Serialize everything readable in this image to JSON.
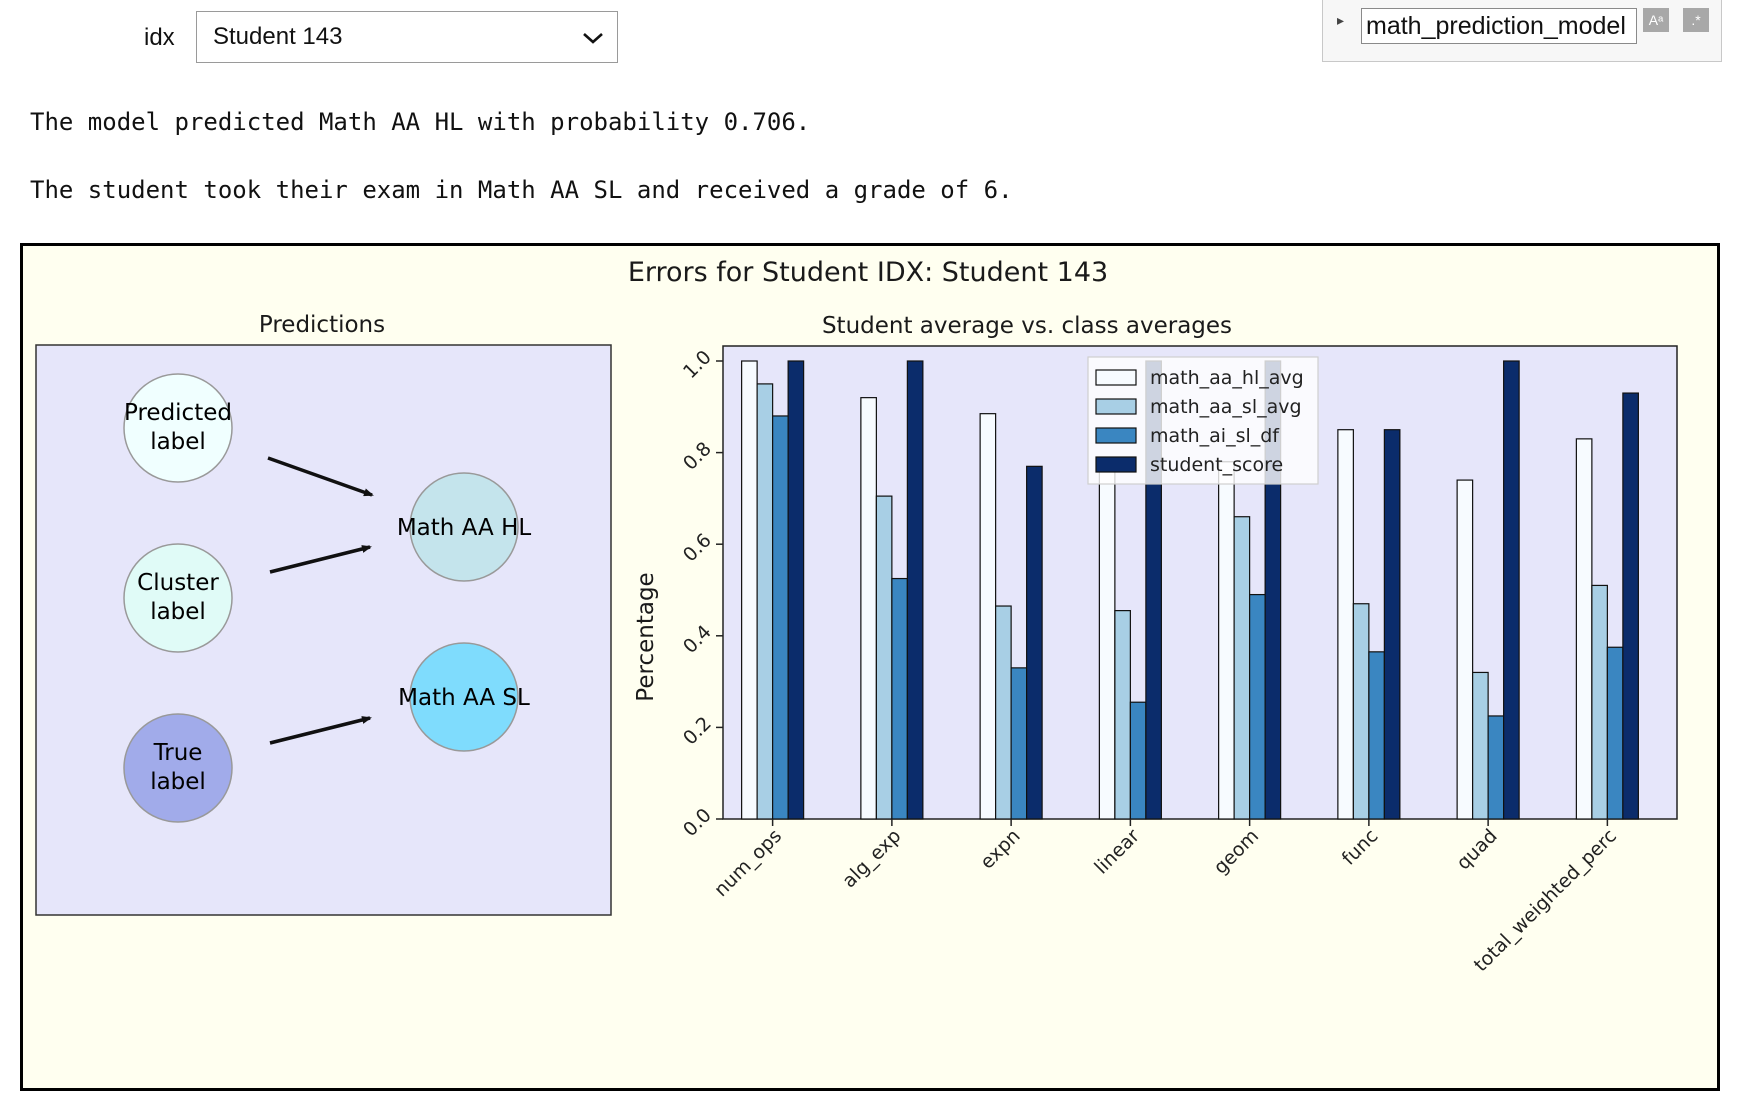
{
  "widget": {
    "idx_label": "idx",
    "idx_value": "Student 143",
    "search_value": "math_prediction_model",
    "case_icon": "case-sensitive-icon",
    "regex_icon": "regex-icon"
  },
  "output": {
    "line1": "The model predicted Math AA HL with probability 0.706.",
    "line2": "The student took their exam in Math AA SL and received a grade of 6."
  },
  "figure": {
    "suptitle": "Errors for Student IDX: Student 143",
    "left_title": "Predictions",
    "nodes": {
      "predicted": [
        "Predicted",
        "label"
      ],
      "cluster": [
        "Cluster",
        "label"
      ],
      "true": [
        "True",
        "label"
      ],
      "hl": "Math AA HL",
      "sl": "Math AA SL"
    },
    "colors": {
      "panel_bg": "#e6e6fa",
      "fig_bg": "#fffff0",
      "node_predicted": "#f0ffff",
      "node_cluster": "#e0fbf7",
      "node_true": "#a1abea",
      "node_hl": "#c4e4ec",
      "node_sl": "#7fdcfd"
    }
  },
  "chart_data": {
    "type": "bar",
    "title": "Student average vs. class averages",
    "ylabel": "Percentage",
    "ylim": [
      0,
      1.0
    ],
    "yticks": [
      "0.0",
      "0.2",
      "0.4",
      "0.6",
      "0.8",
      "1.0"
    ],
    "categories": [
      "num_ops",
      "alg_exp",
      "expn",
      "linear",
      "geom",
      "func",
      "quad",
      "total_weighted_perc"
    ],
    "legend_position": "upper center",
    "series": [
      {
        "name": "math_aa_hl_avg",
        "color": "#f7fbff",
        "values": [
          1.0,
          0.92,
          0.885,
          0.77,
          0.78,
          0.85,
          0.74,
          0.83
        ]
      },
      {
        "name": "math_aa_sl_avg",
        "color": "#a8cfe5",
        "values": [
          0.95,
          0.705,
          0.465,
          0.455,
          0.66,
          0.47,
          0.32,
          0.51
        ]
      },
      {
        "name": "math_ai_sl_df",
        "color": "#3a86c1",
        "values": [
          0.88,
          0.525,
          0.33,
          0.255,
          0.49,
          0.365,
          0.225,
          0.375
        ]
      },
      {
        "name": "student_score",
        "color": "#0b2c6b",
        "values": [
          1.0,
          1.0,
          0.77,
          1.0,
          1.0,
          0.85,
          1.0,
          0.93
        ]
      }
    ]
  }
}
